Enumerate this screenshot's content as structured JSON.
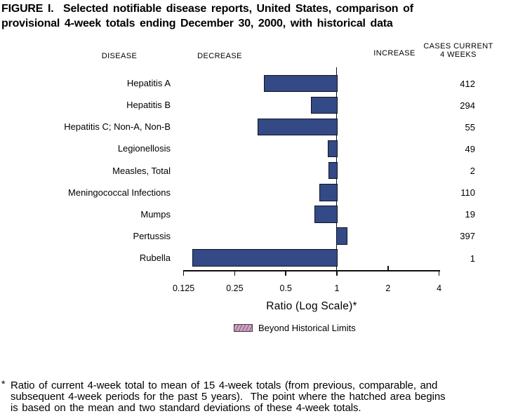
{
  "figure": {
    "title_lines": [
      "FIGURE I.  Selected notifiable disease reports, United States, comparison of",
      "provisional 4-week totals ending December 30, 2000, with historical data"
    ]
  },
  "column_headers": {
    "disease": "DISEASE",
    "decrease": "DECREASE",
    "increase": "INCREASE",
    "cases_line1": "CASES CURRENT",
    "cases_line2": "4 WEEKS"
  },
  "chart_data": {
    "type": "bar",
    "orientation": "horizontal",
    "scale": "log",
    "baseline_ratio": 1,
    "xlabel": "Ratio (Log Scale)*",
    "x_ticks": [
      "0.125",
      "0.25",
      "0.5",
      "1",
      "2",
      "4"
    ],
    "xlim": [
      0.125,
      4
    ],
    "grid": false,
    "categories": [
      "Hepatitis A",
      "Hepatitis B",
      "Hepatitis C; Non-A, Non-B",
      "Legionellosis",
      "Measles, Total",
      "Meningococcal Infections",
      "Mumps",
      "Pertussis",
      "Rubella"
    ],
    "series": [
      {
        "name": "Ratio of current 4-week total to historical mean",
        "values": [
          0.37,
          0.7,
          0.34,
          0.88,
          0.89,
          0.79,
          0.74,
          1.15,
          0.14
        ]
      },
      {
        "name": "Cases, current 4 weeks",
        "values": [
          412,
          294,
          55,
          49,
          2,
          110,
          19,
          397,
          1
        ]
      }
    ],
    "legend": [
      {
        "label": "Beyond Historical Limits",
        "swatch": "hatched"
      }
    ],
    "legend_position": "below",
    "colors": {
      "bar_fill": "#344a87",
      "bar_border": "#10131f",
      "hatch_fill": "#c9abbc",
      "hatch_line": "#a8569e"
    }
  },
  "footnote": {
    "marker": "*",
    "lines": [
      "Ratio of current 4-week total to mean of 15 4-week totals (from previous, comparable, and",
      "subsequent 4-week periods for the past 5 years).  The point where the hatched area begins",
      "is based on the mean and two standard deviations of these 4-week totals."
    ]
  }
}
